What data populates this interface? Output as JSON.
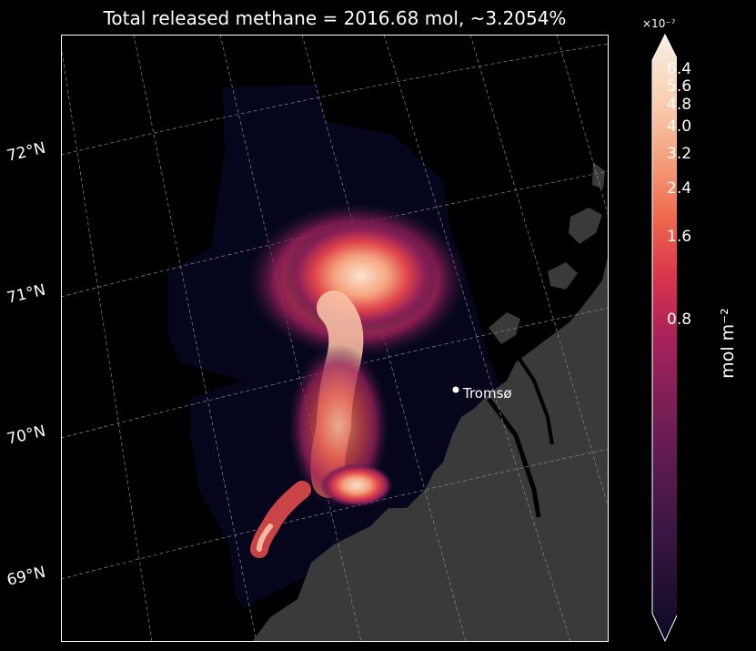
{
  "title": "Total released methane = 2016.68 mol, ~3.2054%",
  "latitude_labels": [
    "72°N",
    "71°N",
    "70°N",
    "69°N"
  ],
  "city": {
    "name": "Tromsø"
  },
  "colorbar": {
    "exponent": "×10⁻⁷",
    "unit": "mol m⁻²",
    "ticks": [
      "6.4",
      "5.6",
      "4.8",
      "4.0",
      "3.2",
      "2.4",
      "1.6",
      "0.8"
    ],
    "extend": "both",
    "colormap": [
      "#0b0a22",
      "#3a1642",
      "#6e1d55",
      "#a8225a",
      "#d9344c",
      "#ee6a4e",
      "#f5a380",
      "#f9d3b6",
      "#fbeee3"
    ]
  },
  "colors": {
    "background": "#000000",
    "ocean_domain": "#05061c",
    "land": "#3a3a3a",
    "grid": "#8a8a8a"
  }
}
